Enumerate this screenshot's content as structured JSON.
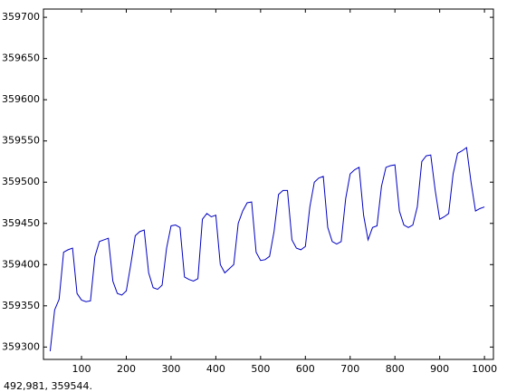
{
  "chart_data": {
    "type": "line",
    "x": [
      30,
      40,
      50,
      60,
      70,
      80,
      90,
      100,
      110,
      120,
      130,
      140,
      150,
      160,
      170,
      180,
      190,
      200,
      210,
      220,
      230,
      240,
      250,
      260,
      270,
      280,
      290,
      300,
      310,
      320,
      330,
      340,
      350,
      360,
      370,
      380,
      390,
      400,
      410,
      420,
      430,
      440,
      450,
      460,
      470,
      480,
      490,
      500,
      510,
      520,
      530,
      540,
      550,
      560,
      570,
      580,
      590,
      600,
      610,
      620,
      630,
      640,
      650,
      660,
      670,
      680,
      690,
      700,
      710,
      720,
      730,
      740,
      750,
      760,
      770,
      780,
      790,
      800,
      810,
      820,
      830,
      840,
      850,
      860,
      870,
      880,
      890,
      900,
      910,
      920,
      930,
      940,
      950,
      960,
      970,
      980,
      990,
      1000
    ],
    "values": [
      359295,
      359345,
      359358,
      359415,
      359418,
      359420,
      359365,
      359357,
      359355,
      359356,
      359410,
      359428,
      359430,
      359432,
      359380,
      359365,
      359363,
      359368,
      359400,
      359435,
      359440,
      359442,
      359390,
      359372,
      359370,
      359375,
      359420,
      359447,
      359448,
      359445,
      359385,
      359382,
      359380,
      359383,
      359455,
      359462,
      359458,
      359460,
      359400,
      359390,
      359395,
      359400,
      359450,
      359465,
      359475,
      359476,
      359415,
      359405,
      359406,
      359410,
      359440,
      359485,
      359490,
      359490,
      359430,
      359420,
      359418,
      359422,
      359470,
      359500,
      359505,
      359507,
      359445,
      359428,
      359425,
      359428,
      359480,
      359510,
      359515,
      359518,
      359460,
      359430,
      359445,
      359447,
      359495,
      359518,
      359520,
      359521,
      359465,
      359448,
      359445,
      359448,
      359470,
      359525,
      359532,
      359533,
      359490,
      359455,
      359458,
      359462,
      359510,
      359535,
      359538,
      359542,
      359500,
      359465,
      359468,
      359470
    ],
    "color": "#0000c0",
    "xlim": [
      15,
      1020
    ],
    "ylim": [
      359285,
      359710
    ],
    "xticks": [
      100,
      200,
      300,
      400,
      500,
      600,
      700,
      800,
      900,
      1000
    ],
    "yticks": [
      359300,
      359350,
      359400,
      359450,
      359500,
      359550,
      359600,
      359650,
      359700
    ],
    "grid": false
  },
  "status_text": "492,981,  359544."
}
